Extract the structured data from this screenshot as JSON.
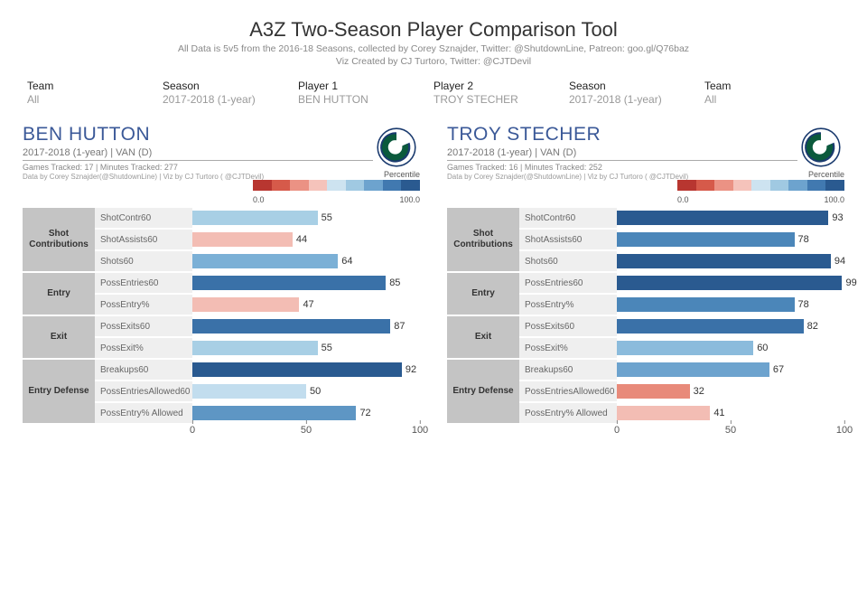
{
  "title": "A3Z Two-Season Player Comparison Tool",
  "subtitle1": "All Data is 5v5 from the 2016-18 Seasons, collected by Corey Sznajder, Twitter: @ShutdownLine, Patreon: goo.gl/Q76baz",
  "subtitle2": "Viz Created by CJ Turtoro, Twitter: @CJTDevil",
  "filters": [
    {
      "label": "Team",
      "value": "All"
    },
    {
      "label": "Season",
      "value": "2017-2018 (1-year)"
    },
    {
      "label": "Player 1",
      "value": "BEN HUTTON"
    },
    {
      "label": "Player 2",
      "value": "TROY STECHER"
    },
    {
      "label": "Season",
      "value": "2017-2018 (1-year)"
    },
    {
      "label": "Team",
      "value": "All"
    }
  ],
  "legend": {
    "title": "Percentile",
    "min": "0.0",
    "max": "100.0",
    "stops": [
      "#b83630",
      "#d65a4a",
      "#eb9284",
      "#f5c3bb",
      "#cde3f0",
      "#a0c9e2",
      "#6da3ce",
      "#4179b0",
      "#2a5a90"
    ]
  },
  "groups": [
    {
      "name": "Shot\nContributions",
      "rows": 3
    },
    {
      "name": "Entry",
      "rows": 2
    },
    {
      "name": "Exit",
      "rows": 2
    },
    {
      "name": "Entry Defense",
      "rows": 3
    }
  ],
  "metrics": [
    "ShotContr60",
    "ShotAssists60",
    "Shots60",
    "PossEntries60",
    "PossEntry%",
    "PossExits60",
    "PossExit%",
    "Breakups60",
    "PossEntriesAllowed60",
    "PossEntry% Allowed"
  ],
  "xaxis": {
    "min": 0,
    "max": 100,
    "ticks": [
      0,
      50,
      100
    ]
  },
  "players": [
    {
      "name": "BEN HUTTON",
      "meta": "2017-2018 (1-year) | VAN (D)",
      "tracked": "Games Tracked: 17 | Minutes Tracked: 277",
      "credit": "Data by Corey Sznajder(@ShutdownLine) | Viz by CJ Turtoro ( @CJTDevil)",
      "values": [
        {
          "v": 55,
          "c": "#a8cfe5"
        },
        {
          "v": 44,
          "c": "#f3bdb4"
        },
        {
          "v": 64,
          "c": "#7bb0d6"
        },
        {
          "v": 85,
          "c": "#3a71a8"
        },
        {
          "v": 47,
          "c": "#f3bdb4"
        },
        {
          "v": 87,
          "c": "#3a71a8"
        },
        {
          "v": 55,
          "c": "#a8cfe5"
        },
        {
          "v": 92,
          "c": "#2a5a90"
        },
        {
          "v": 50,
          "c": "#c2ddee"
        },
        {
          "v": 72,
          "c": "#5e96c4"
        }
      ]
    },
    {
      "name": "TROY STECHER",
      "meta": "2017-2018 (1-year) | VAN (D)",
      "tracked": "Games Tracked: 16 | Minutes Tracked: 252",
      "credit": "Data by Corey Sznajder(@ShutdownLine) | Viz by CJ Turtoro ( @CJTDevil)",
      "values": [
        {
          "v": 93,
          "c": "#2a5a90"
        },
        {
          "v": 78,
          "c": "#4b86b9"
        },
        {
          "v": 94,
          "c": "#2a5a90"
        },
        {
          "v": 99,
          "c": "#2a5a90"
        },
        {
          "v": 78,
          "c": "#4b86b9"
        },
        {
          "v": 82,
          "c": "#3a71a8"
        },
        {
          "v": 60,
          "c": "#8bbbdc"
        },
        {
          "v": 67,
          "c": "#6da3ce"
        },
        {
          "v": 32,
          "c": "#e88a7a"
        },
        {
          "v": 41,
          "c": "#f3bdb4"
        }
      ]
    }
  ]
}
